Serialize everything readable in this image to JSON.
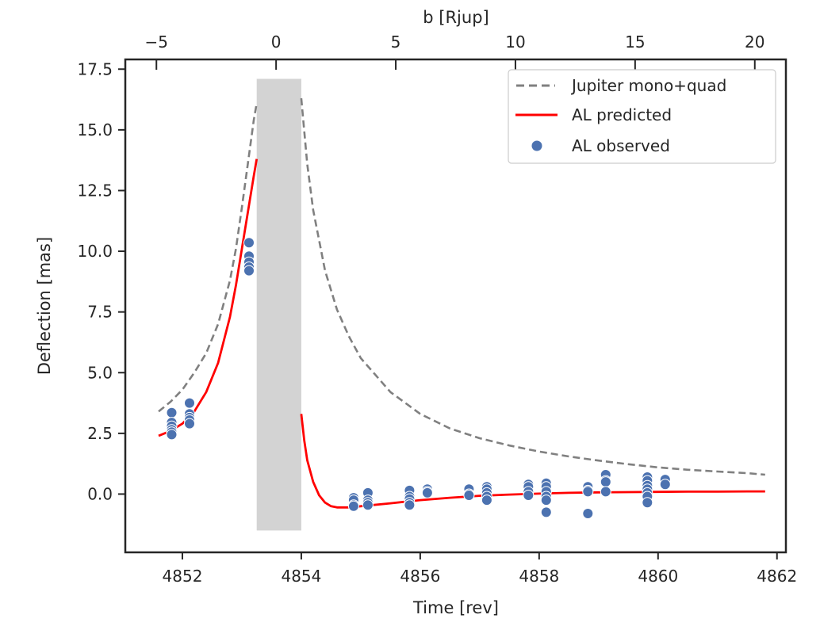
{
  "chart_data": {
    "type": "scatter",
    "title": "",
    "xlabel": "Time [rev]",
    "ylabel": "Deflection [mas]",
    "xlabel_top": "b [Rjup]",
    "xlim": [
      4851.04,
      4862.15
    ],
    "ylim": [
      -2.4,
      17.9
    ],
    "xlim_top": [
      -6.3,
      21.3
    ],
    "x_ticks": [
      4852,
      4854,
      4856,
      4858,
      4860,
      4862
    ],
    "x_tick_labels": [
      "4852",
      "4854",
      "4856",
      "4858",
      "4860",
      "4862"
    ],
    "y_ticks": [
      0.0,
      2.5,
      5.0,
      7.5,
      10.0,
      12.5,
      15.0,
      17.5
    ],
    "y_tick_labels": [
      "0.0",
      "2.5",
      "5.0",
      "7.5",
      "10.0",
      "12.5",
      "15.0",
      "17.5"
    ],
    "x_top_ticks": [
      -5,
      0,
      5,
      10,
      15,
      20
    ],
    "x_top_tick_labels": [
      "−5",
      "0",
      "5",
      "10",
      "15",
      "20"
    ],
    "grid": false,
    "legend_position": "top-right",
    "colors": {
      "jupiter": "#808080",
      "predicted": "#ff0000",
      "observed": "#4c72b0",
      "shaded": "#d3d3d3",
      "axis": "#262626"
    },
    "shaded_region": {
      "x": [
        4853.25,
        4854.0
      ],
      "y": [
        -1.5,
        17.1
      ]
    },
    "series": [
      {
        "name": "Jupiter mono+quad",
        "style": "dashed",
        "segments": [
          {
            "x": [
              4851.6,
              4851.8,
              4852.0,
              4852.2,
              4852.4,
              4852.6,
              4852.8,
              4852.9,
              4853.0,
              4853.1,
              4853.2,
              4853.25
            ],
            "y": [
              3.4,
              3.8,
              4.3,
              5.0,
              5.8,
              7.0,
              8.8,
              10.1,
              11.8,
              13.6,
              15.4,
              16.1
            ]
          },
          {
            "x": [
              4854.0,
              4854.1,
              4854.2,
              4854.4,
              4854.6,
              4854.8,
              4855.0,
              4855.5,
              4856.0,
              4856.5,
              4857.0,
              4857.5,
              4858.0,
              4858.5,
              4859.0,
              4859.5,
              4860.0,
              4860.5,
              4861.0,
              4861.5,
              4861.8
            ],
            "y": [
              16.3,
              13.6,
              11.7,
              9.2,
              7.6,
              6.5,
              5.6,
              4.2,
              3.3,
              2.7,
              2.3,
              2.0,
              1.75,
              1.55,
              1.38,
              1.23,
              1.1,
              1.0,
              0.93,
              0.86,
              0.8
            ]
          }
        ]
      },
      {
        "name": "AL predicted",
        "style": "solid",
        "segments": [
          {
            "x": [
              4851.6,
              4851.8,
              4852.0,
              4852.2,
              4852.4,
              4852.6,
              4852.8,
              4852.9,
              4853.0,
              4853.1,
              4853.2,
              4853.25
            ],
            "y": [
              2.4,
              2.6,
              2.9,
              3.4,
              4.2,
              5.4,
              7.3,
              8.6,
              10.1,
              11.6,
              13.1,
              13.8
            ]
          },
          {
            "x": [
              4854.0,
              4854.05,
              4854.1,
              4854.2,
              4854.3,
              4854.4,
              4854.5,
              4854.6,
              4854.8,
              4855.0,
              4855.5,
              4856.0,
              4856.5,
              4857.0,
              4857.5,
              4858.0,
              4858.5,
              4859.0,
              4859.5,
              4860.0,
              4860.5,
              4861.0,
              4861.5,
              4861.8
            ],
            "y": [
              3.3,
              2.2,
              1.4,
              0.5,
              -0.05,
              -0.35,
              -0.5,
              -0.55,
              -0.55,
              -0.5,
              -0.38,
              -0.25,
              -0.15,
              -0.07,
              -0.02,
              0.02,
              0.05,
              0.07,
              0.08,
              0.09,
              0.1,
              0.1,
              0.11,
              0.11
            ]
          }
        ]
      },
      {
        "name": "AL observed",
        "style": "points",
        "points": [
          [
            4851.82,
            3.35
          ],
          [
            4851.82,
            2.95
          ],
          [
            4851.82,
            2.8
          ],
          [
            4851.82,
            2.65
          ],
          [
            4851.82,
            2.55
          ],
          [
            4851.82,
            2.45
          ],
          [
            4852.12,
            3.75
          ],
          [
            4852.12,
            3.3
          ],
          [
            4852.12,
            3.15
          ],
          [
            4852.12,
            3.05
          ],
          [
            4852.12,
            2.9
          ],
          [
            4853.12,
            10.35
          ],
          [
            4853.12,
            9.8
          ],
          [
            4853.12,
            9.55
          ],
          [
            4853.12,
            9.35
          ],
          [
            4853.12,
            9.2
          ],
          [
            4854.88,
            -0.15
          ],
          [
            4854.88,
            -0.25
          ],
          [
            4854.88,
            -0.45
          ],
          [
            4854.88,
            -0.5
          ],
          [
            4855.12,
            0.05
          ],
          [
            4855.12,
            -0.25
          ],
          [
            4855.12,
            -0.35
          ],
          [
            4855.12,
            -0.45
          ],
          [
            4855.82,
            0.15
          ],
          [
            4855.82,
            -0.1
          ],
          [
            4855.82,
            -0.2
          ],
          [
            4855.82,
            -0.35
          ],
          [
            4855.82,
            -0.45
          ],
          [
            4856.12,
            0.2
          ],
          [
            4856.12,
            0.1
          ],
          [
            4856.12,
            0.05
          ],
          [
            4856.82,
            0.2
          ],
          [
            4856.82,
            0.0
          ],
          [
            4856.82,
            -0.05
          ],
          [
            4857.12,
            0.3
          ],
          [
            4857.12,
            0.2
          ],
          [
            4857.12,
            0.05
          ],
          [
            4857.12,
            -0.1
          ],
          [
            4857.12,
            -0.25
          ],
          [
            4857.82,
            0.4
          ],
          [
            4857.82,
            0.3
          ],
          [
            4857.82,
            0.1
          ],
          [
            4857.82,
            -0.05
          ],
          [
            4858.12,
            0.45
          ],
          [
            4858.12,
            0.3
          ],
          [
            4858.12,
            0.1
          ],
          [
            4858.12,
            -0.1
          ],
          [
            4858.12,
            -0.25
          ],
          [
            4858.12,
            -0.75
          ],
          [
            4858.82,
            0.3
          ],
          [
            4858.82,
            0.15
          ],
          [
            4858.82,
            0.1
          ],
          [
            4858.82,
            -0.8
          ],
          [
            4859.12,
            0.8
          ],
          [
            4859.12,
            0.55
          ],
          [
            4859.12,
            0.5
          ],
          [
            4859.12,
            0.1
          ],
          [
            4859.82,
            0.7
          ],
          [
            4859.82,
            0.55
          ],
          [
            4859.82,
            0.35
          ],
          [
            4859.82,
            0.2
          ],
          [
            4859.82,
            0.05
          ],
          [
            4859.82,
            -0.1
          ],
          [
            4859.82,
            -0.35
          ],
          [
            4860.12,
            0.6
          ],
          [
            4860.12,
            0.4
          ]
        ]
      }
    ],
    "legend": [
      {
        "label": "Jupiter mono+quad",
        "marker": "dashed-line"
      },
      {
        "label": "AL predicted",
        "marker": "solid-line"
      },
      {
        "label": "AL observed",
        "marker": "dot"
      }
    ]
  }
}
